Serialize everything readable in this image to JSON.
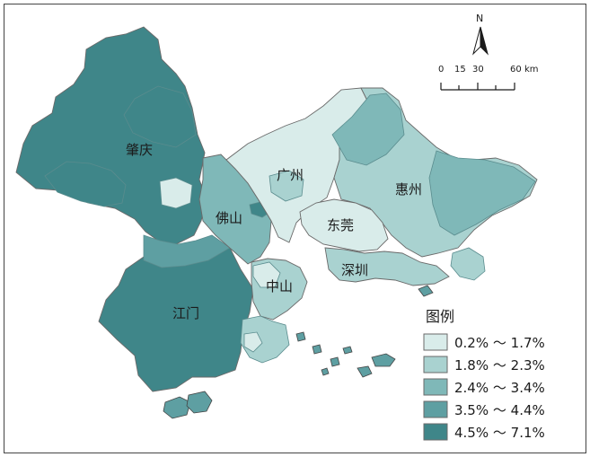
{
  "colors": {
    "class_1": "#d9ecea",
    "class_2": "#a9d2d0",
    "class_3": "#7fb8b8",
    "class_4": "#5e9fa2",
    "class_5": "#3f8689",
    "border": "#6a6a6a",
    "region_line": "#5a8c8e"
  },
  "map": {
    "cities": [
      {
        "name": "肇庆",
        "class": 5
      },
      {
        "name": "广州",
        "class": 1
      },
      {
        "name": "惠州",
        "class": 2
      },
      {
        "name": "佛山",
        "class": 3
      },
      {
        "name": "东莞",
        "class": 1
      },
      {
        "name": "深圳",
        "class": 2
      },
      {
        "name": "中山",
        "class": 2
      },
      {
        "name": "江门",
        "class": 5
      }
    ]
  },
  "north_arrow": {
    "label": "N",
    "icon": "north-arrow-icon"
  },
  "scale_bar": {
    "ticks": [
      "0",
      "15",
      "30",
      "60"
    ],
    "unit": "km"
  },
  "legend": {
    "title": "图例",
    "items": [
      {
        "label": "0.2% ～ 1.7%",
        "class": 1
      },
      {
        "label": "1.8% ～ 2.3%",
        "class": 2
      },
      {
        "label": "2.4% ～ 3.4%",
        "class": 3
      },
      {
        "label": "3.5% ～ 4.4%",
        "class": 4
      },
      {
        "label": "4.5% ～ 7.1%",
        "class": 5
      }
    ]
  }
}
